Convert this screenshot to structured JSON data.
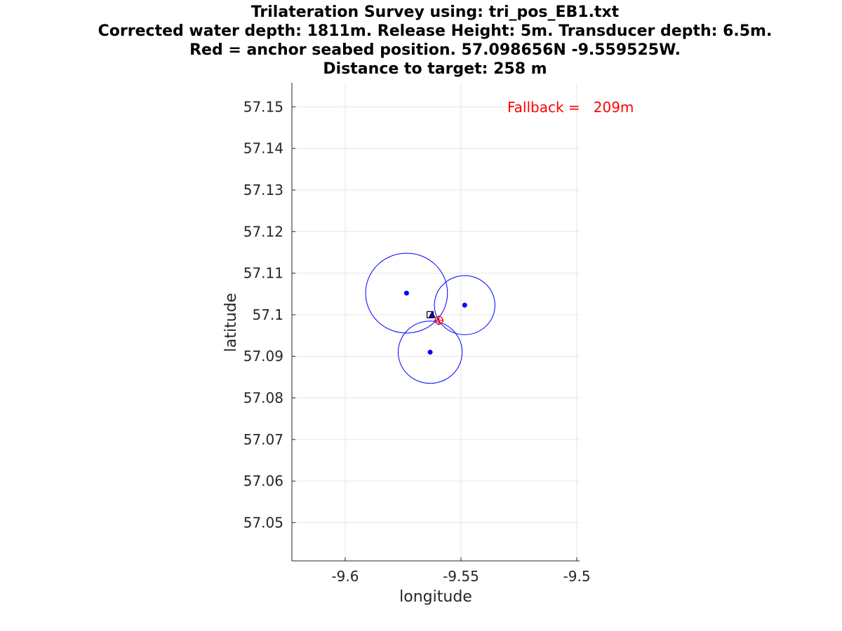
{
  "chart_data": {
    "type": "scatter",
    "title": [
      "Trilateration Survey using: tri_pos_EB1.txt",
      "Corrected water depth: 1811m. Release Height: 5m. Transducer depth: 6.5m.",
      "Red = anchor seabed position. 57.098656N -9.559525W.",
      "Distance to target: 258 m"
    ],
    "xlabel": "longitude",
    "ylabel": "latitude",
    "xlim": [
      -9.623,
      -9.4988
    ],
    "ylim": [
      57.0408,
      57.1558
    ],
    "xticks": [
      -9.6,
      -9.55,
      -9.5
    ],
    "xtick_labels": [
      "-9.6",
      "-9.55",
      "-9.5"
    ],
    "yticks": [
      57.05,
      57.06,
      57.07,
      57.08,
      57.09,
      57.1,
      57.11,
      57.12,
      57.13,
      57.14,
      57.15
    ],
    "ytick_labels": [
      "57.05",
      "57.06",
      "57.07",
      "57.08",
      "57.09",
      "57.1",
      "57.11",
      "57.12",
      "57.13",
      "57.14",
      "57.15"
    ],
    "grid": true,
    "annotation": {
      "text": "Fallback =   209m",
      "color": "#ff0000"
    },
    "survey_points": [
      {
        "lon": -9.5735,
        "lat": 57.1052
      },
      {
        "lon": -9.5484,
        "lat": 57.1023
      },
      {
        "lon": -9.5633,
        "lat": 57.091
      }
    ],
    "range_circles": [
      {
        "lon": -9.5735,
        "lat": 57.1052,
        "radius_deg_lat": 0.0096
      },
      {
        "lon": -9.5484,
        "lat": 57.1023,
        "radius_deg_lat": 0.0071
      },
      {
        "lon": -9.5633,
        "lat": 57.091,
        "radius_deg_lat": 0.0075
      }
    ],
    "deploy_position": {
      "lon": -9.5633,
      "lat": 57.1,
      "marker": "square"
    },
    "triangle_marker": {
      "lon": -9.5625,
      "lat": 57.0999,
      "marker": "triangle"
    },
    "anchor_position": {
      "lon": -9.559525,
      "lat": 57.098656,
      "marker": "circle-plus",
      "color": "#ff0000"
    },
    "colors": {
      "survey": "#0000ff",
      "circles": "#0000ff",
      "anchor": "#ff0000",
      "deploy": "#000000",
      "grid": "#e6e6e6",
      "axis": "#262626"
    }
  }
}
